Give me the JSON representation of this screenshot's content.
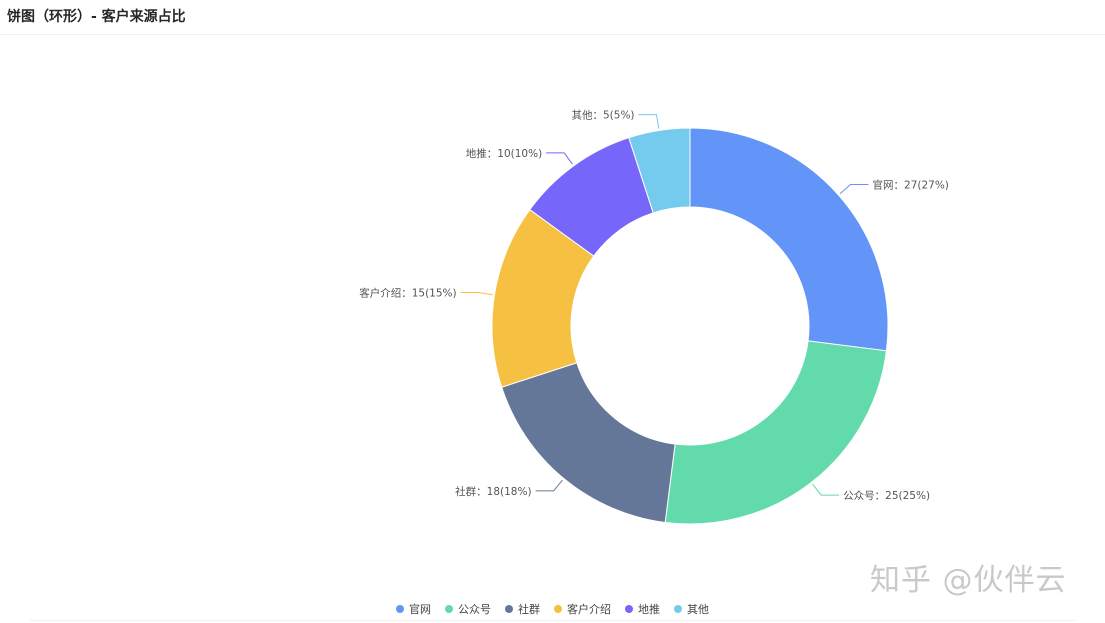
{
  "header": {
    "title": "饼图（环形）- 客户来源占比"
  },
  "watermark": "知乎 @伙伴云",
  "chart_data": {
    "type": "pie",
    "donut": true,
    "title": "",
    "legend_position": "bottom-center",
    "slices": [
      {
        "name": "官网",
        "value": 27,
        "percent": 27,
        "color": "#6395F9",
        "label": "官网：27(27%)"
      },
      {
        "name": "公众号",
        "value": 25,
        "percent": 25,
        "color": "#62DAAB",
        "label": "公众号：25(25%)"
      },
      {
        "name": "社群",
        "value": 18,
        "percent": 18,
        "color": "#657798",
        "label": "社群：18(18%)"
      },
      {
        "name": "客户介绍",
        "value": 15,
        "percent": 15,
        "color": "#F6C143",
        "label": "客户介绍：15(15%)"
      },
      {
        "name": "地推",
        "value": 10,
        "percent": 10,
        "color": "#7666F9",
        "label": "地推：10(10%)"
      },
      {
        "name": "其他",
        "value": 5,
        "percent": 5,
        "color": "#74CBED",
        "label": "其他：5(5%)"
      }
    ]
  }
}
